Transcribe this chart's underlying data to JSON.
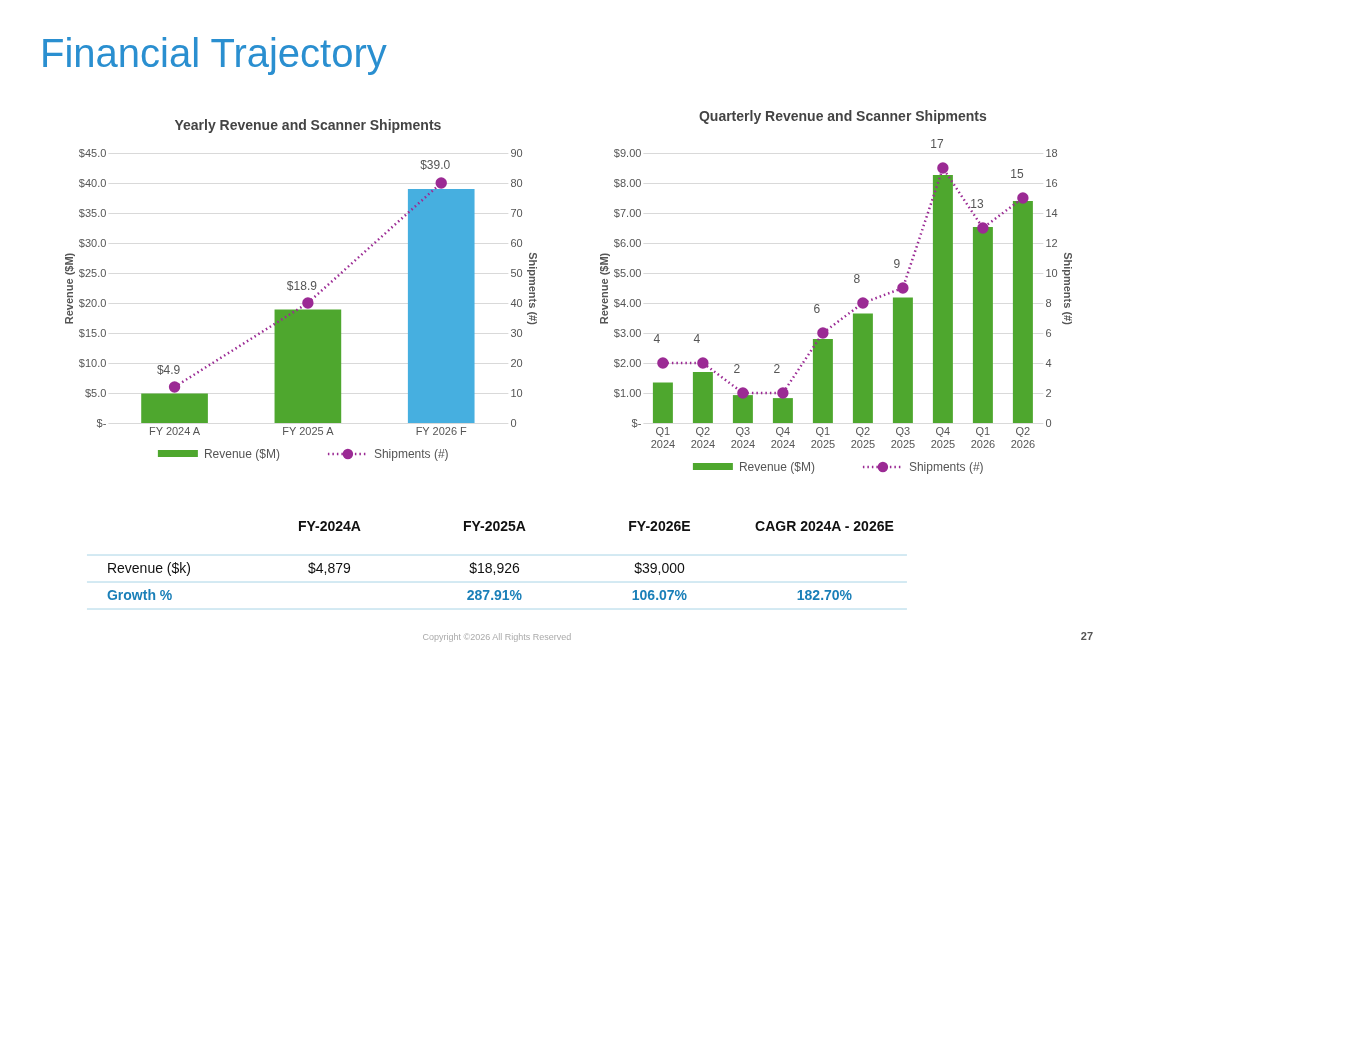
{
  "chart_data": [
    {
      "type": "bar",
      "title": "Yearly Revenue and Scanner Shipments",
      "ylabel": "Revenue ($M)",
      "y2label": "Shipments (#)",
      "categories": [
        "FY 2024 A",
        "FY 2025 A",
        "FY 2026 F"
      ],
      "series": [
        {
          "name": "Revenue ($M)",
          "type": "bar",
          "color": "#4ea72e",
          "colors": [
            "#4ea72e",
            "#4ea72e",
            "#46afe0"
          ],
          "values": [
            4.9,
            18.9,
            39.0
          ],
          "value_labels": [
            "$4.9",
            "$18.9",
            "$39.0"
          ]
        },
        {
          "name": "Shipments (#)",
          "type": "line",
          "axis": "y2",
          "color": "#9b2a94",
          "values": [
            12,
            40,
            80
          ],
          "marker": "circle",
          "line_style": "dotted"
        }
      ],
      "ylim": [
        0,
        45
      ],
      "yticks": [
        {
          "value": 0,
          "label": "$-"
        },
        {
          "value": 5,
          "label": "$5.0"
        },
        {
          "value": 10,
          "label": "$10.0"
        },
        {
          "value": 15,
          "label": "$15.0"
        },
        {
          "value": 20,
          "label": "$20.0"
        },
        {
          "value": 25,
          "label": "$25.0"
        },
        {
          "value": 30,
          "label": "$30.0"
        },
        {
          "value": 35,
          "label": "$35.0"
        },
        {
          "value": 40,
          "label": "$40.0"
        },
        {
          "value": 45,
          "label": "$45.0"
        }
      ],
      "y2lim": [
        0,
        90
      ],
      "y2ticks": [
        0,
        10,
        20,
        30,
        40,
        50,
        60,
        70,
        80,
        90
      ],
      "grid": "y",
      "legend": "bottom"
    },
    {
      "type": "bar",
      "title": "Quarterly Revenue and Scanner Shipments",
      "ylabel": "Revenue ($M)",
      "y2label": "Shipments (#)",
      "categories": [
        "Q1 2024",
        "Q2 2024",
        "Q3 2024",
        "Q4 2024",
        "Q1 2025",
        "Q2 2025",
        "Q3 2025",
        "Q4 2025",
        "Q1 2026",
        "Q2 2026"
      ],
      "series": [
        {
          "name": "Revenue ($M)",
          "type": "bar",
          "color": "#4ea72e",
          "values": [
            1.35,
            1.7,
            0.93,
            0.83,
            2.8,
            3.65,
            4.18,
            8.27,
            6.53,
            7.4
          ]
        },
        {
          "name": "Shipments (#)",
          "type": "line",
          "axis": "y2",
          "color": "#9b2a94",
          "values": [
            4,
            4,
            2,
            2,
            6,
            8,
            9,
            17,
            13,
            15
          ],
          "value_labels": [
            "4",
            "4",
            "2",
            "2",
            "6",
            "8",
            "9",
            "17",
            "13",
            "15"
          ],
          "marker": "circle",
          "line_style": "dotted"
        }
      ],
      "ylim": [
        0,
        9
      ],
      "yticks": [
        {
          "value": 0,
          "label": "$-"
        },
        {
          "value": 1,
          "label": "$1.00"
        },
        {
          "value": 2,
          "label": "$2.00"
        },
        {
          "value": 3,
          "label": "$3.00"
        },
        {
          "value": 4,
          "label": "$4.00"
        },
        {
          "value": 5,
          "label": "$5.00"
        },
        {
          "value": 6,
          "label": "$6.00"
        },
        {
          "value": 7,
          "label": "$7.00"
        },
        {
          "value": 8,
          "label": "$8.00"
        },
        {
          "value": 9,
          "label": "$9.00"
        }
      ],
      "y2lim": [
        0,
        18
      ],
      "y2ticks": [
        0,
        2,
        4,
        6,
        8,
        10,
        12,
        14,
        16,
        18
      ],
      "grid": "y",
      "legend": "bottom"
    },
    {
      "type": "other",
      "title": "Financial Trajectory",
      "categories": [
        null,
        "FY-2024A",
        "FY-2025A",
        "FY-2026E",
        "CAGR 2024A - 2026E"
      ],
      "y_categories": [
        "Revenue ($k)",
        "Growth %"
      ],
      "cell_labels": [
        [
          "$4,879",
          "$18,926",
          "$39,000",
          null
        ],
        [
          null,
          "287.91%",
          "106.07%",
          "182.70%"
        ]
      ],
      "annotations": [
        "Copyright ©2026 All Rights Reserved",
        "27"
      ]
    }
  ]
}
